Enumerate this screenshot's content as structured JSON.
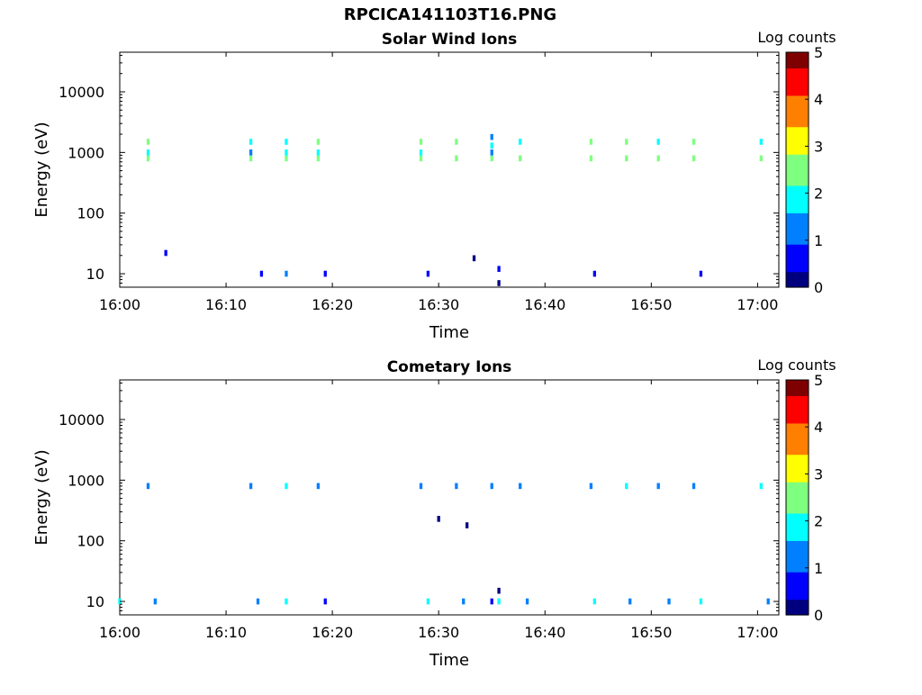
{
  "figure": {
    "file_title": "RPCICA141103T16.PNG"
  },
  "colors": {
    "colormap": [
      "#00007f",
      "#0000ff",
      "#007fff",
      "#00ffff",
      "#7fff7f",
      "#ffff00",
      "#ff7f00",
      "#ff0000",
      "#7f0000"
    ],
    "axis": "#000000",
    "background": "#ffffff"
  },
  "chart_data": [
    {
      "type": "heatmap",
      "title": "Solar Wind Ions",
      "xlabel": "Time",
      "ylabel": "Energy (eV)",
      "yscale": "log",
      "xlim": [
        "16:00",
        "17:02"
      ],
      "ylim": [
        6,
        45000
      ],
      "xticks": [
        "16:00",
        "16:10",
        "16:20",
        "16:30",
        "16:40",
        "16:50",
        "17:00"
      ],
      "yticks": [
        "10",
        "100",
        "1000",
        "10000"
      ],
      "colorbar": {
        "label": "Log counts",
        "ticks": [
          "0",
          "1",
          "2",
          "3",
          "4",
          "5"
        ],
        "range": [
          0,
          5
        ]
      },
      "cells": [
        {
          "t": "16:02:40",
          "e": 800,
          "v": 2.6
        },
        {
          "t": "16:02:40",
          "e": 1000,
          "v": 1.8
        },
        {
          "t": "16:02:40",
          "e": 1500,
          "v": 2.2
        },
        {
          "t": "16:12:20",
          "e": 800,
          "v": 2.2
        },
        {
          "t": "16:12:20",
          "e": 1000,
          "v": 1.5
        },
        {
          "t": "16:12:20",
          "e": 1500,
          "v": 1.8
        },
        {
          "t": "16:15:40",
          "e": 800,
          "v": 2.7
        },
        {
          "t": "16:15:40",
          "e": 1000,
          "v": 1.9
        },
        {
          "t": "16:15:40",
          "e": 1500,
          "v": 2.1
        },
        {
          "t": "16:18:40",
          "e": 800,
          "v": 2.5
        },
        {
          "t": "16:18:40",
          "e": 1000,
          "v": 1.7
        },
        {
          "t": "16:18:40",
          "e": 1500,
          "v": 2.3
        },
        {
          "t": "16:28:20",
          "e": 800,
          "v": 2.8
        },
        {
          "t": "16:28:20",
          "e": 1000,
          "v": 1.6
        },
        {
          "t": "16:28:20",
          "e": 1500,
          "v": 2.4
        },
        {
          "t": "16:31:40",
          "e": 800,
          "v": 2.3
        },
        {
          "t": "16:31:40",
          "e": 1500,
          "v": 2.5
        },
        {
          "t": "16:35:00",
          "e": 800,
          "v": 2.6
        },
        {
          "t": "16:35:00",
          "e": 1000,
          "v": 1.4
        },
        {
          "t": "16:35:00",
          "e": 1300,
          "v": 2.0
        },
        {
          "t": "16:35:00",
          "e": 1800,
          "v": 1.2
        },
        {
          "t": "16:37:40",
          "e": 800,
          "v": 2.4
        },
        {
          "t": "16:37:40",
          "e": 1500,
          "v": 2.0
        },
        {
          "t": "16:44:20",
          "e": 800,
          "v": 2.7
        },
        {
          "t": "16:44:20",
          "e": 1500,
          "v": 2.3
        },
        {
          "t": "16:47:40",
          "e": 800,
          "v": 2.5
        },
        {
          "t": "16:47:40",
          "e": 1500,
          "v": 2.2
        },
        {
          "t": "16:50:40",
          "e": 800,
          "v": 2.6
        },
        {
          "t": "16:50:40",
          "e": 1500,
          "v": 2.0
        },
        {
          "t": "16:54:00",
          "e": 800,
          "v": 2.8
        },
        {
          "t": "16:54:00",
          "e": 1500,
          "v": 2.6
        },
        {
          "t": "17:00:20",
          "e": 800,
          "v": 2.4
        },
        {
          "t": "17:00:20",
          "e": 1500,
          "v": 1.9
        },
        {
          "t": "16:35:40",
          "e": 7,
          "v": 0.3
        },
        {
          "t": "16:35:40",
          "e": 12,
          "v": 0.5
        },
        {
          "t": "16:33:20",
          "e": 18,
          "v": 0.2
        },
        {
          "t": "16:04:20",
          "e": 22,
          "v": 0.5
        },
        {
          "t": "16:15:40",
          "e": 10,
          "v": 1.2
        },
        {
          "t": "16:13:20",
          "e": 10,
          "v": 0.8
        },
        {
          "t": "16:19:20",
          "e": 10,
          "v": 0.6
        },
        {
          "t": "16:29:00",
          "e": 10,
          "v": 0.7
        },
        {
          "t": "16:44:40",
          "e": 10,
          "v": 0.8
        },
        {
          "t": "16:54:40",
          "e": 10,
          "v": 0.8
        }
      ]
    },
    {
      "type": "heatmap",
      "title": "Cometary Ions",
      "xlabel": "Time",
      "ylabel": "Energy (eV)",
      "yscale": "log",
      "xlim": [
        "16:00",
        "17:02"
      ],
      "ylim": [
        6,
        45000
      ],
      "xticks": [
        "16:00",
        "16:10",
        "16:20",
        "16:30",
        "16:40",
        "16:50",
        "17:00"
      ],
      "yticks": [
        "10",
        "100",
        "1000",
        "10000"
      ],
      "colorbar": {
        "label": "Log counts",
        "ticks": [
          "0",
          "1",
          "2",
          "3",
          "4",
          "5"
        ],
        "range": [
          0,
          5
        ]
      },
      "cells": [
        {
          "t": "16:02:40",
          "e": 800,
          "v": 1.5
        },
        {
          "t": "16:12:20",
          "e": 800,
          "v": 1.4
        },
        {
          "t": "16:15:40",
          "e": 800,
          "v": 1.6
        },
        {
          "t": "16:18:40",
          "e": 800,
          "v": 1.3
        },
        {
          "t": "16:28:20",
          "e": 800,
          "v": 1.5
        },
        {
          "t": "16:31:40",
          "e": 800,
          "v": 1.2
        },
        {
          "t": "16:35:00",
          "e": 800,
          "v": 1.1
        },
        {
          "t": "16:37:40",
          "e": 800,
          "v": 1.4
        },
        {
          "t": "16:44:20",
          "e": 800,
          "v": 1.3
        },
        {
          "t": "16:47:40",
          "e": 800,
          "v": 1.7
        },
        {
          "t": "16:50:40",
          "e": 800,
          "v": 1.2
        },
        {
          "t": "16:54:00",
          "e": 800,
          "v": 1.5
        },
        {
          "t": "17:00:20",
          "e": 800,
          "v": 1.9
        },
        {
          "t": "16:32:40",
          "e": 180,
          "v": 0.2
        },
        {
          "t": "16:30:00",
          "e": 230,
          "v": 0.3
        },
        {
          "t": "16:35:00",
          "e": 10,
          "v": 0.4
        },
        {
          "t": "16:35:40",
          "e": 10,
          "v": 2.1
        },
        {
          "t": "16:35:40",
          "e": 15,
          "v": 0.3
        },
        {
          "t": "16:29:00",
          "e": 10,
          "v": 1.9
        },
        {
          "t": "16:32:20",
          "e": 10,
          "v": 1.1
        },
        {
          "t": "16:38:20",
          "e": 10,
          "v": 1.0
        },
        {
          "t": "16:44:40",
          "e": 10,
          "v": 1.7
        },
        {
          "t": "16:48:00",
          "e": 10,
          "v": 1.2
        },
        {
          "t": "16:51:40",
          "e": 10,
          "v": 1.5
        },
        {
          "t": "16:54:40",
          "e": 10,
          "v": 1.8
        },
        {
          "t": "17:01:00",
          "e": 10,
          "v": 1.3
        },
        {
          "t": "16:15:40",
          "e": 10,
          "v": 1.8
        },
        {
          "t": "16:00:00",
          "e": 10,
          "v": 1.6
        },
        {
          "t": "16:03:20",
          "e": 10,
          "v": 1.4
        },
        {
          "t": "16:13:00",
          "e": 10,
          "v": 1.2
        },
        {
          "t": "16:19:20",
          "e": 10,
          "v": 0.8
        }
      ]
    }
  ]
}
